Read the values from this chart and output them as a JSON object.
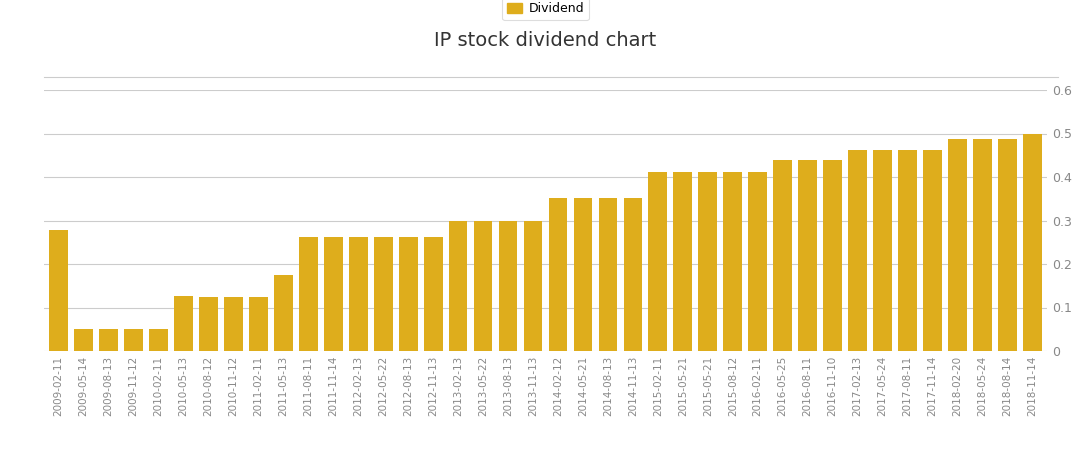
{
  "title": "IP stock dividend chart",
  "bar_color": "#DEAD1C",
  "legend_label": "Dividend",
  "ylim": [
    0,
    0.6
  ],
  "yticks": [
    0.0,
    0.1,
    0.2,
    0.3,
    0.4,
    0.5,
    0.6
  ],
  "background_color": "#ffffff",
  "grid_color": "#cccccc",
  "categories": [
    "2009-02-11",
    "2009-05-14",
    "2009-08-13",
    "2009-11-12",
    "2010-02-11",
    "2010-05-13",
    "2010-08-12",
    "2010-11-12",
    "2011-02-11",
    "2011-05-13",
    "2011-08-11",
    "2011-11-14",
    "2012-02-13",
    "2012-05-22",
    "2012-08-13",
    "2012-11-13",
    "2013-02-13",
    "2013-05-22",
    "2013-08-13",
    "2013-11-13",
    "2014-02-12",
    "2014-05-21",
    "2014-08-13",
    "2014-11-13",
    "2015-02-11",
    "2015-05-21",
    "2015-05-21",
    "2015-08-12",
    "2016-02-11",
    "2016-05-25",
    "2016-08-11",
    "2016-11-10",
    "2017-02-13",
    "2017-05-24",
    "2017-08-11",
    "2017-11-14",
    "2018-02-20",
    "2018-05-24",
    "2018-08-14",
    "2018-11-14"
  ],
  "values": [
    0.2775,
    0.05,
    0.05,
    0.05,
    0.05,
    0.1275,
    0.125,
    0.125,
    0.125,
    0.175,
    0.2625,
    0.2625,
    0.2625,
    0.2625,
    0.2625,
    0.2625,
    0.3,
    0.3,
    0.3,
    0.3,
    0.3525,
    0.3525,
    0.3525,
    0.3525,
    0.4125,
    0.4125,
    0.4125,
    0.4125,
    0.4125,
    0.44,
    0.44,
    0.44,
    0.4625,
    0.4625,
    0.4625,
    0.4625,
    0.4875,
    0.4875,
    0.4875,
    0.5
  ],
  "title_fontsize": 14,
  "tick_fontsize": 7.5,
  "ytick_fontsize": 9,
  "title_color": "#333333",
  "tick_color": "#888888",
  "legend_box_color": "#dddddd"
}
